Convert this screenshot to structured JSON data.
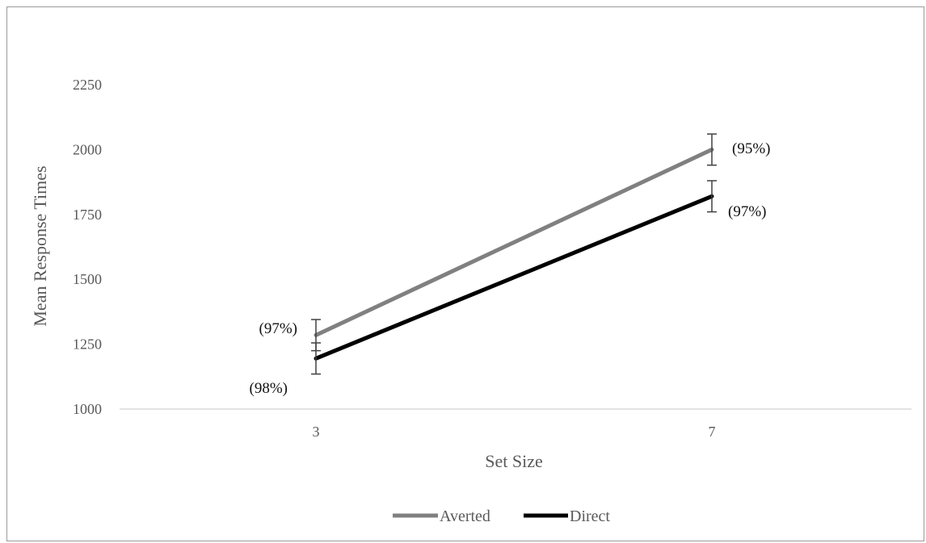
{
  "chart_data": {
    "type": "line",
    "title": "",
    "xlabel": "Set Size",
    "ylabel": "Mean Response Times",
    "categories": [
      "3",
      "7"
    ],
    "ylim": [
      1000,
      2250
    ],
    "yticks": [
      1000,
      1250,
      1500,
      1750,
      2000,
      2250
    ],
    "grid": false,
    "legend_position": "bottom",
    "series": [
      {
        "name": "Averted",
        "color": "#808080",
        "values": [
          1285,
          2000
        ],
        "error": [
          60,
          60
        ],
        "annotations": [
          "(97%)",
          "(95%)"
        ]
      },
      {
        "name": "Direct",
        "color": "#000000",
        "values": [
          1195,
          1820
        ],
        "error": [
          60,
          60
        ],
        "annotations": [
          "(98%)",
          "(97%)"
        ]
      }
    ]
  }
}
